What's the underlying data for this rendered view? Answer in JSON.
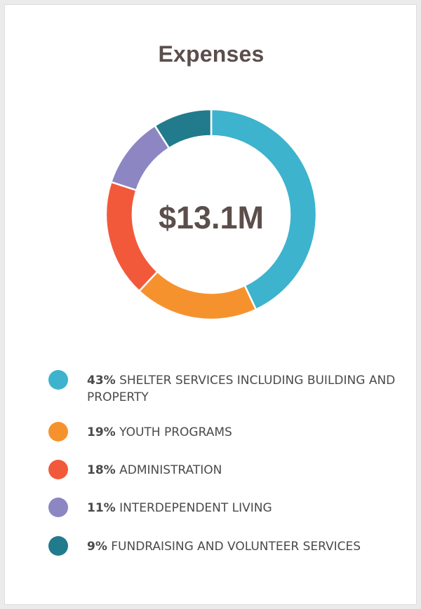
{
  "colors": {
    "title": "#5b4e4b",
    "total": "#5b4e4b",
    "text": "#4a4a4a"
  },
  "chart_data": {
    "type": "pie",
    "variant": "donut",
    "title": "Expenses",
    "center_label": "$13.1M",
    "legend_placement": "bottom",
    "slices": [
      {
        "percent_label": "43%",
        "label": "SHELTER SERVICES INCLUDING BUILDING AND PROPERTY",
        "value": 43,
        "color": "#3db3cd"
      },
      {
        "percent_label": "19%",
        "label": "YOUTH PROGRAMS",
        "value": 19,
        "color": "#f6922e"
      },
      {
        "percent_label": "18%",
        "label": "ADMINISTRATION",
        "value": 18,
        "color": "#f2593a"
      },
      {
        "percent_label": "11%",
        "label": "INTERDEPENDENT LIVING",
        "value": 11,
        "color": "#8c86c2"
      },
      {
        "percent_label": "9%",
        "label": "FUNDRAISING AND VOLUNTEER SERVICES",
        "value": 9,
        "color": "#217b8d"
      }
    ]
  }
}
